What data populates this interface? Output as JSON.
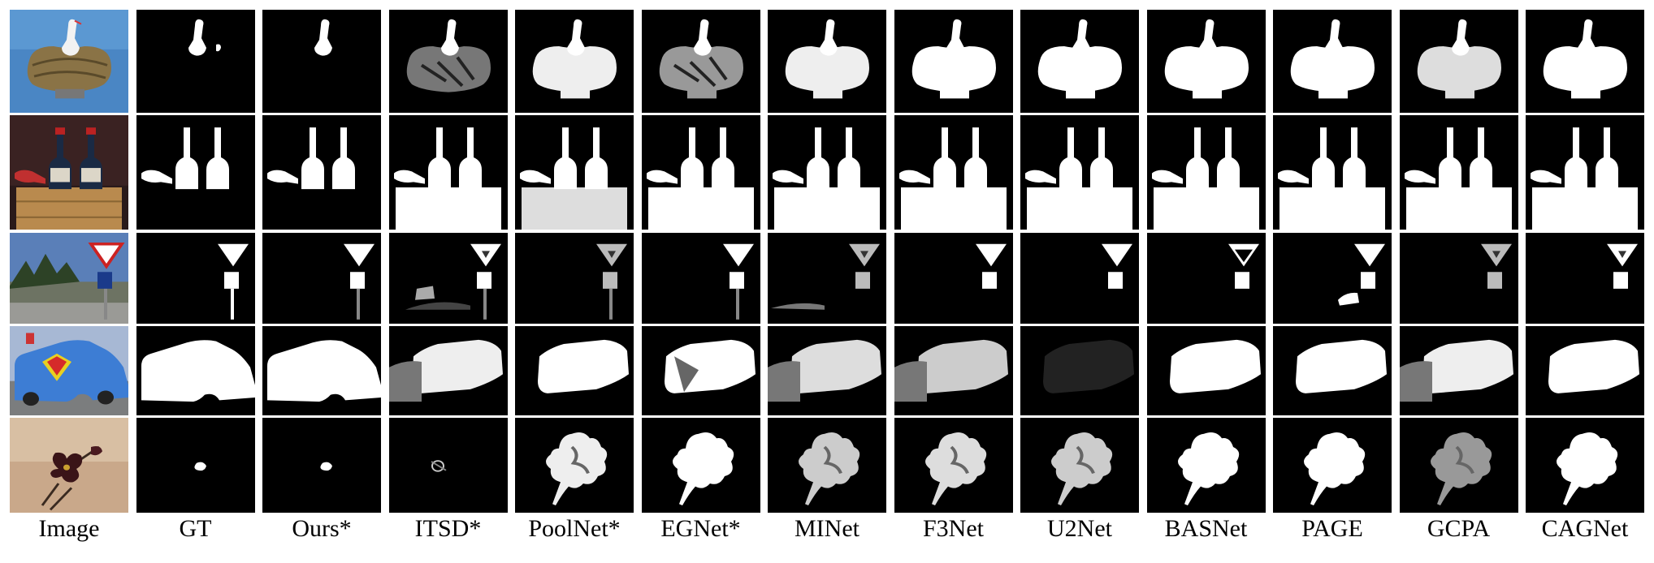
{
  "figure": {
    "columns": [
      {
        "label": "Image",
        "kind": "image"
      },
      {
        "label": "GT",
        "kind": "gt"
      },
      {
        "label": "Ours*",
        "kind": "ours"
      },
      {
        "label": "ITSD*",
        "kind": "itsd"
      },
      {
        "label": "PoolNet*",
        "kind": "poolnet"
      },
      {
        "label": "EGNet*",
        "kind": "egnet"
      },
      {
        "label": "MINet",
        "kind": "minet"
      },
      {
        "label": "F3Net",
        "kind": "f3net"
      },
      {
        "label": "U2Net",
        "kind": "u2net"
      },
      {
        "label": "BASNet",
        "kind": "basnet"
      },
      {
        "label": "PAGE",
        "kind": "page"
      },
      {
        "label": "GCPA",
        "kind": "gcpa"
      },
      {
        "label": "CAGNet",
        "kind": "cagnet"
      }
    ],
    "rows": [
      {
        "scene": "stork-on-nest"
      },
      {
        "scene": "wine-bottles-in-crate"
      },
      {
        "scene": "yield-road-sign"
      },
      {
        "scene": "superman-van"
      },
      {
        "scene": "dark-flower"
      }
    ],
    "colors": {
      "background": "#ffffff",
      "mask_bg": "#000000",
      "mask_fg": "#ffffff"
    }
  }
}
